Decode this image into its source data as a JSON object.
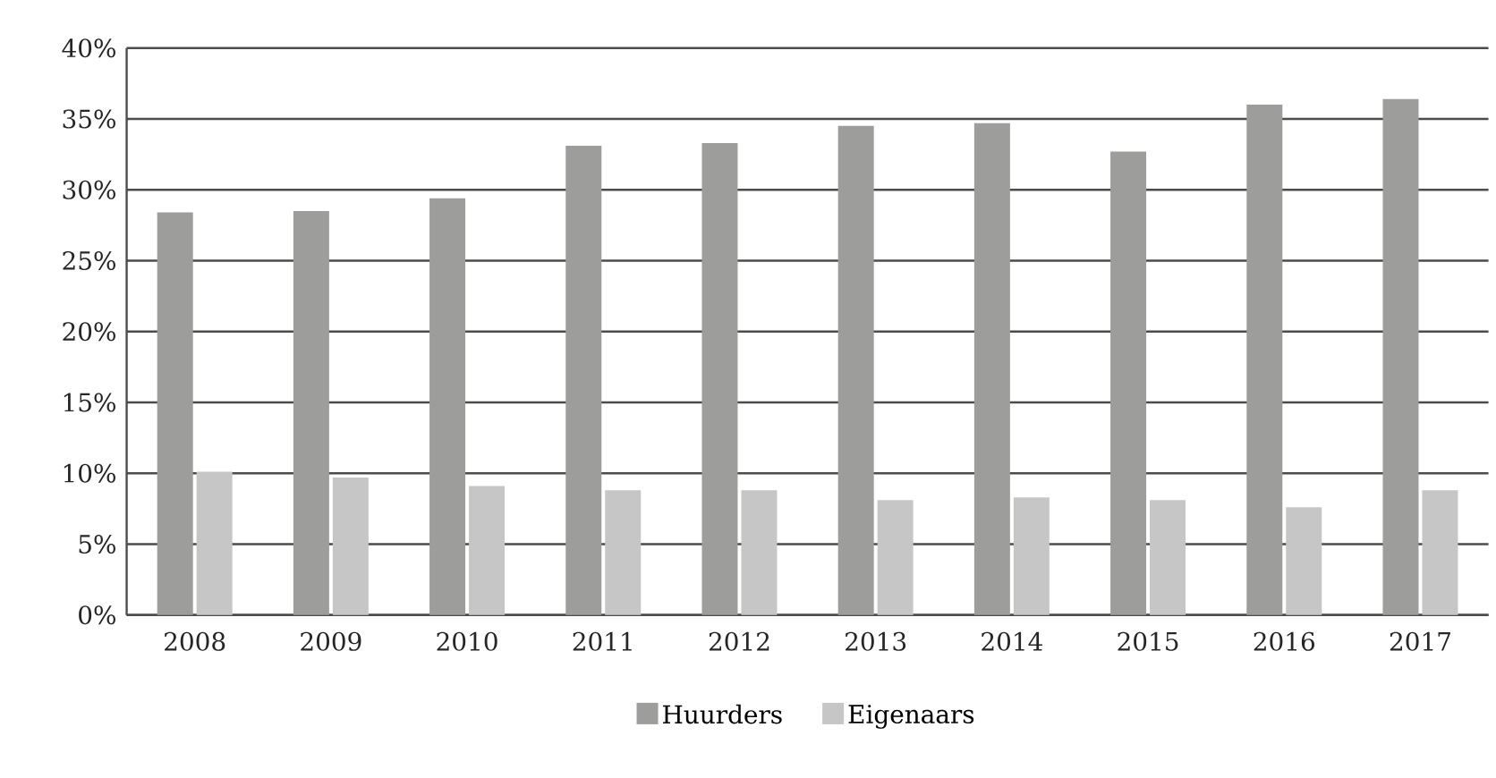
{
  "chart_data": {
    "type": "bar",
    "categories": [
      "2008",
      "2009",
      "2010",
      "2011",
      "2012",
      "2013",
      "2014",
      "2015",
      "2016",
      "2017"
    ],
    "series": [
      {
        "name": "Huurders",
        "color": "#9d9d9b",
        "values": [
          28.4,
          28.5,
          29.4,
          33.1,
          33.3,
          34.5,
          34.7,
          32.7,
          36.0,
          36.4
        ]
      },
      {
        "name": "Eigenaars",
        "color": "#c6c6c6",
        "values": [
          10.1,
          9.7,
          9.1,
          8.8,
          8.8,
          8.1,
          8.3,
          8.1,
          7.6,
          8.8
        ]
      }
    ],
    "ylim": [
      0,
      40
    ],
    "yticks": [
      {
        "value": 0,
        "label": "0%"
      },
      {
        "value": 5,
        "label": "5%"
      },
      {
        "value": 10,
        "label": "10%"
      },
      {
        "value": 15,
        "label": "15%"
      },
      {
        "value": 20,
        "label": "20%"
      },
      {
        "value": 25,
        "label": "25%"
      },
      {
        "value": 30,
        "label": "30%"
      },
      {
        "value": 35,
        "label": "35%"
      },
      {
        "value": 40,
        "label": "40%"
      }
    ],
    "grid": "y",
    "legend": "bottom"
  }
}
